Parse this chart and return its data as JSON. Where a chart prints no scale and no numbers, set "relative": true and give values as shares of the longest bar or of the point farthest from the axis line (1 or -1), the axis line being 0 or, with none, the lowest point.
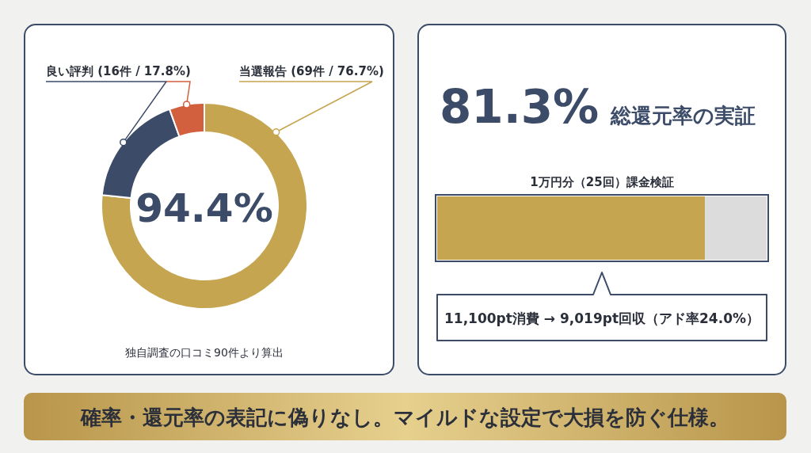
{
  "chart_data": [
    {
      "type": "donut",
      "categories": [
        "当選報告 (69件 / 76.7%)",
        "良い評判 (16件 / 17.8%)",
        null
      ],
      "values": [
        76.7,
        17.8,
        5.5
      ],
      "colors": [
        "#c6a550",
        "#3b4b68",
        "#d2603f"
      ],
      "annotations": [
        "94.4%",
        "独自調査の口コミ90件より算出"
      ]
    },
    {
      "type": "bar",
      "orientation": "horizontal",
      "stacked": true,
      "relative": true,
      "title": "81.3% 総還元率の実証",
      "subtitle": "1万円分（25回）課金検証",
      "categories": [
        null
      ],
      "series": [
        {
          "color": "#c6a550",
          "values": [
            0.813
          ]
        },
        {
          "color": "#dcdcdc",
          "values": [
            0.187
          ]
        }
      ],
      "annotations": [
        "11,100pt消費 → 9,019pt回収（アド率24.0%）"
      ]
    },
    {
      "type": "other",
      "title": "確率・還元率の表記に偽りなし。マイルドな設定で大損を防ぐ仕様。"
    }
  ]
}
